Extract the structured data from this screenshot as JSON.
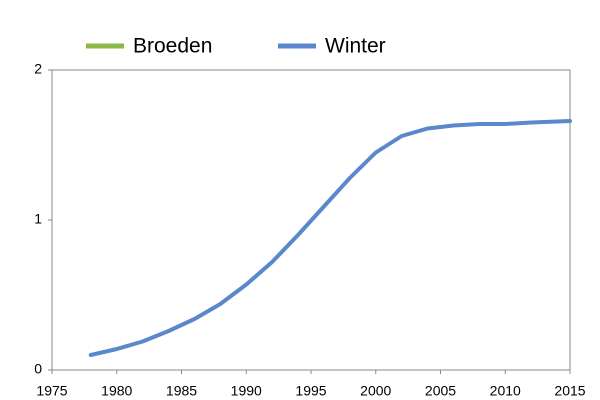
{
  "chart_data": {
    "type": "line",
    "x": [
      1978,
      1980,
      1982,
      1984,
      1986,
      1988,
      1990,
      1992,
      1994,
      1996,
      1998,
      2000,
      2002,
      2004,
      2006,
      2008,
      2010,
      2012,
      2015
    ],
    "series": [
      {
        "name": "Broeden",
        "color": "#8cb84a",
        "values": [
          null,
          null,
          null,
          null,
          null,
          null,
          null,
          null,
          null,
          null,
          null,
          null,
          null,
          null,
          null,
          null,
          null,
          null,
          null
        ]
      },
      {
        "name": "Winter",
        "color": "#5b87cc",
        "values": [
          0.1,
          0.14,
          0.19,
          0.26,
          0.34,
          0.44,
          0.57,
          0.72,
          0.9,
          1.09,
          1.28,
          1.45,
          1.56,
          1.61,
          1.63,
          1.64,
          1.64,
          1.65,
          1.66
        ]
      }
    ],
    "xlim": [
      1975,
      2015
    ],
    "xticks": [
      1975,
      1980,
      1985,
      1990,
      1995,
      2000,
      2005,
      2010,
      2015
    ],
    "ylim": [
      0,
      2
    ],
    "yticks": [
      0,
      1,
      2
    ],
    "grid": false,
    "legend": "top"
  }
}
